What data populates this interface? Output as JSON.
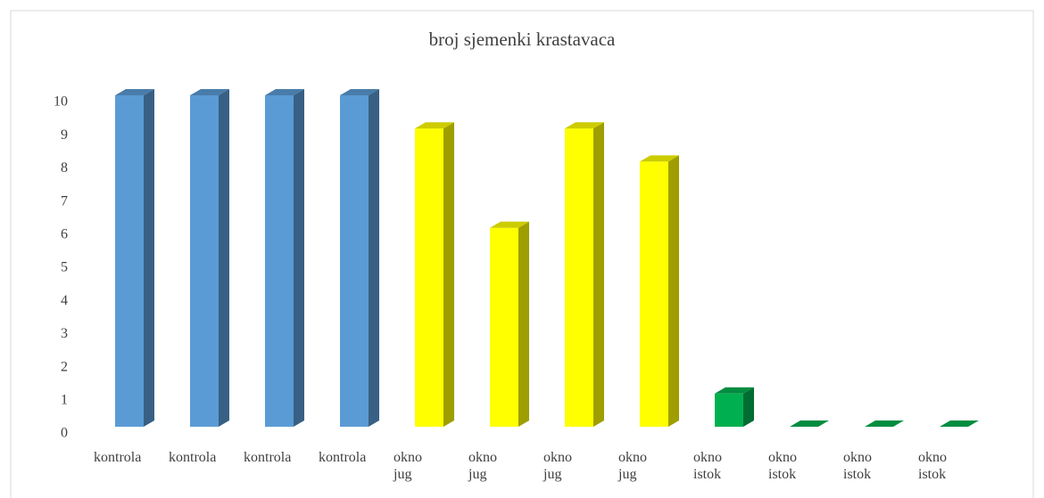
{
  "chart_data": {
    "type": "bar3d",
    "title": "broj sjemenki krastavaca",
    "categories": [
      "kontrola",
      "kontrola",
      "kontrola",
      "kontrola",
      "okno jug",
      "okno jug",
      "okno jug",
      "okno jug",
      "okno istok",
      "okno istok",
      "okno istok",
      "okno istok"
    ],
    "values": [
      10,
      10,
      10,
      10,
      9,
      6,
      9,
      8,
      1,
      0,
      0,
      0
    ],
    "colors": [
      "#5b9bd5",
      "#5b9bd5",
      "#5b9bd5",
      "#5b9bd5",
      "#ffff00",
      "#ffff00",
      "#ffff00",
      "#ffff00",
      "#00b050",
      "#00b050",
      "#00b050",
      "#00b050"
    ],
    "ylim": [
      0,
      10
    ],
    "yticks": [
      0,
      1,
      2,
      3,
      4,
      5,
      6,
      7,
      8,
      9,
      10
    ],
    "grid": false
  }
}
